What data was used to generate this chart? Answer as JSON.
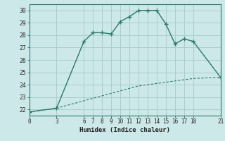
{
  "xlabel": "Humidex (Indice chaleur)",
  "upper_x": [
    0,
    3,
    6,
    7,
    8,
    9,
    10,
    11,
    12,
    13,
    14,
    15,
    16,
    17,
    18,
    21
  ],
  "upper_y": [
    21.8,
    22.1,
    27.5,
    28.2,
    28.2,
    28.1,
    29.1,
    29.5,
    30.0,
    30.0,
    30.0,
    28.9,
    27.3,
    27.7,
    27.5,
    24.6
  ],
  "lower_x": [
    0,
    3,
    6,
    7,
    8,
    9,
    10,
    11,
    12,
    13,
    14,
    15,
    16,
    17,
    18,
    21
  ],
  "lower_y": [
    21.8,
    22.1,
    22.7,
    22.9,
    23.1,
    23.3,
    23.5,
    23.7,
    23.9,
    24.0,
    24.1,
    24.2,
    24.3,
    24.4,
    24.5,
    24.6
  ],
  "line_color": "#2a7a6a",
  "bg_color": "#cce8e8",
  "grid_color": "#aacece",
  "xlim": [
    0,
    21
  ],
  "ylim": [
    21.5,
    30.5
  ],
  "xticks": [
    0,
    3,
    6,
    7,
    8,
    9,
    10,
    11,
    12,
    13,
    14,
    15,
    16,
    17,
    18,
    21
  ],
  "yticks": [
    22,
    23,
    24,
    25,
    26,
    27,
    28,
    29,
    30
  ],
  "tick_fontsize": 5.5,
  "xlabel_fontsize": 6.5
}
